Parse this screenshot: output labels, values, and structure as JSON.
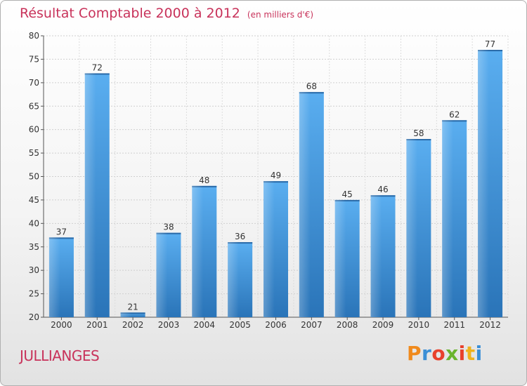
{
  "chart_data": {
    "type": "bar",
    "title": "Résultat Comptable 2000 à 2012",
    "subtitle": "(en milliers d'€)",
    "categories": [
      "2000",
      "2001",
      "2002",
      "2003",
      "2004",
      "2005",
      "2006",
      "2007",
      "2008",
      "2009",
      "2010",
      "2011",
      "2012"
    ],
    "values": [
      37,
      72,
      21,
      38,
      48,
      36,
      49,
      68,
      45,
      46,
      58,
      62,
      77
    ],
    "ylim": [
      20,
      80
    ],
    "yticks": [
      20,
      25,
      30,
      35,
      40,
      45,
      50,
      55,
      60,
      65,
      70,
      75,
      80
    ],
    "grid": true,
    "bar_color": "#4a9be0",
    "xlabel": "",
    "ylabel": ""
  },
  "commune": "JULLIANGES",
  "logo": {
    "letters": [
      "P",
      "r",
      "o",
      "x",
      "i",
      "t",
      "i"
    ],
    "colors": [
      "#f08a1c",
      "#3b8fd6",
      "#e8412c",
      "#6ab42d",
      "#e8412c",
      "#f0b21c",
      "#3b8fd6"
    ]
  }
}
